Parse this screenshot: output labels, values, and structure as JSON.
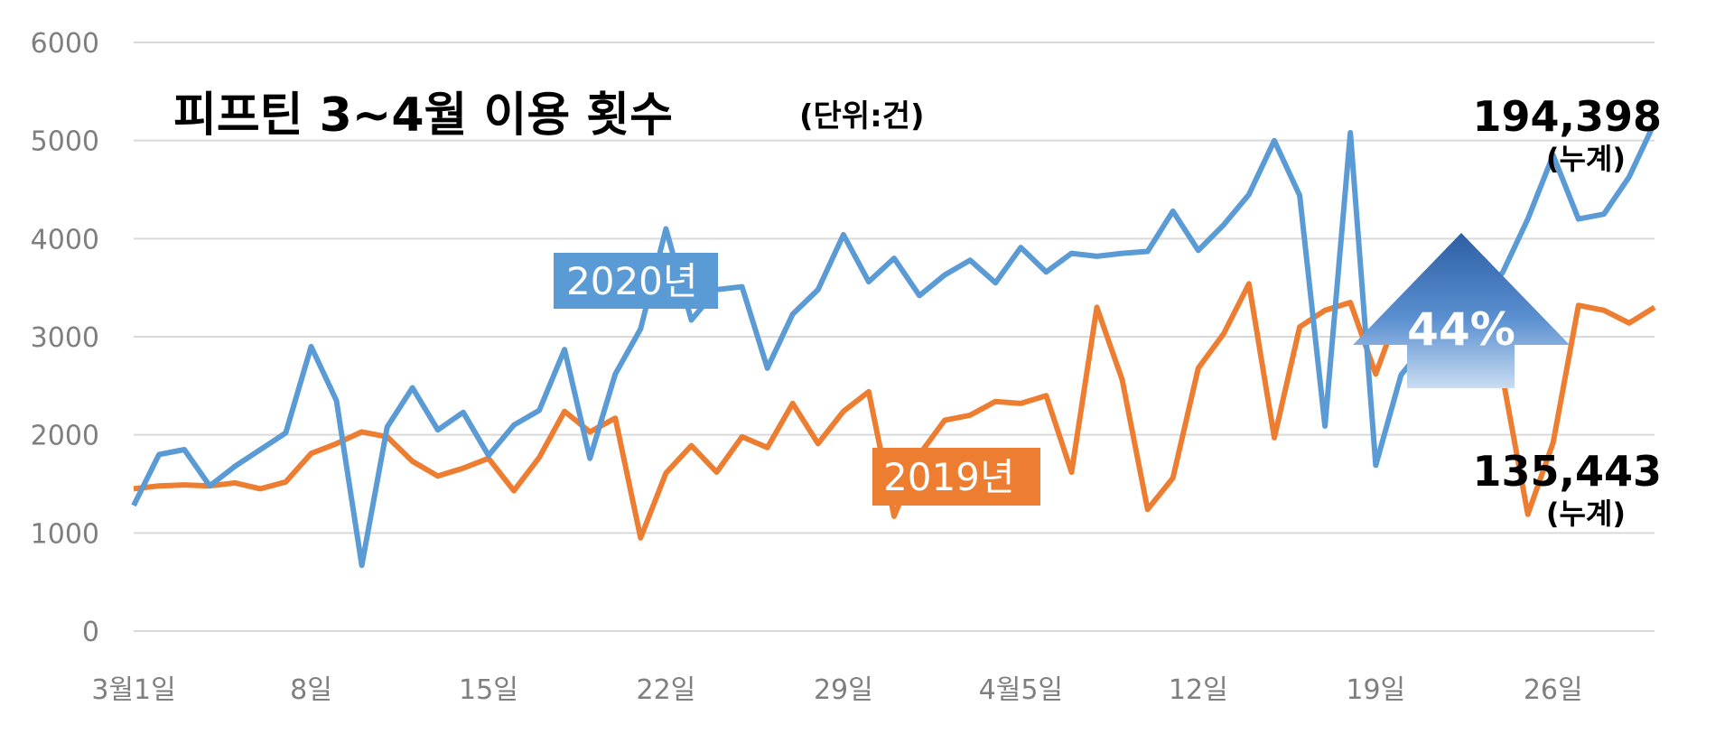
{
  "chart_data": {
    "type": "line",
    "title": "피프틴 3~4월 이용 횟수",
    "unit_label": "(단위:건)",
    "ylim": [
      0,
      6000
    ],
    "yticks": [
      "0",
      "1000",
      "2000",
      "3000",
      "4000",
      "5000",
      "6000"
    ],
    "xtick_labels": [
      "3월1일",
      "8일",
      "15일",
      "22일",
      "29일",
      "4월5일",
      "12일",
      "19일",
      "26일"
    ],
    "grid": true,
    "colors": {
      "2020": "#5b9bd5",
      "2019": "#ed7d31",
      "arrow": "#4472c4"
    },
    "series": [
      {
        "name": "2020년",
        "values": [
          1280,
          1800,
          1850,
          1480,
          1680,
          1850,
          2020,
          2900,
          2350,
          670,
          2080,
          2480,
          2050,
          2230,
          1790,
          2100,
          2250,
          2870,
          1760,
          2620,
          3080,
          4100,
          3170,
          3480,
          3510,
          2680,
          3230,
          3480,
          4040,
          3560,
          3800,
          3420,
          3630,
          3780,
          3550,
          3910,
          3660,
          3850,
          3820,
          3850,
          3870,
          4280,
          3880,
          4140,
          4450,
          5000,
          4440,
          2090,
          5080,
          1690,
          2610,
          2930,
          3480,
          3460,
          3650,
          4200,
          4850,
          4200,
          4250,
          4630,
          5180
        ]
      },
      {
        "name": "2019년",
        "values": [
          1450,
          1480,
          1490,
          1480,
          1510,
          1450,
          1520,
          1810,
          1910,
          2030,
          1980,
          1730,
          1580,
          1660,
          1760,
          1430,
          1770,
          2240,
          2030,
          2170,
          950,
          1610,
          1890,
          1620,
          1980,
          1870,
          2320,
          1910,
          2240,
          2440,
          1170,
          1800,
          2150,
          2200,
          2340,
          2320,
          2400,
          1620,
          3300,
          2560,
          1240,
          1560,
          2680,
          3030,
          3540,
          1970,
          3100,
          3270,
          3350,
          2620,
          3320,
          2840,
          3060,
          3050,
          2600,
          1190,
          1920,
          3320,
          3270,
          3140,
          3300
        ]
      }
    ],
    "annotations": {
      "label_2020": "2020년",
      "label_2019": "2019년",
      "total_2020": "194,398",
      "total_2019": "135,443",
      "cumulative": "(누계)",
      "increase": "44%"
    }
  }
}
